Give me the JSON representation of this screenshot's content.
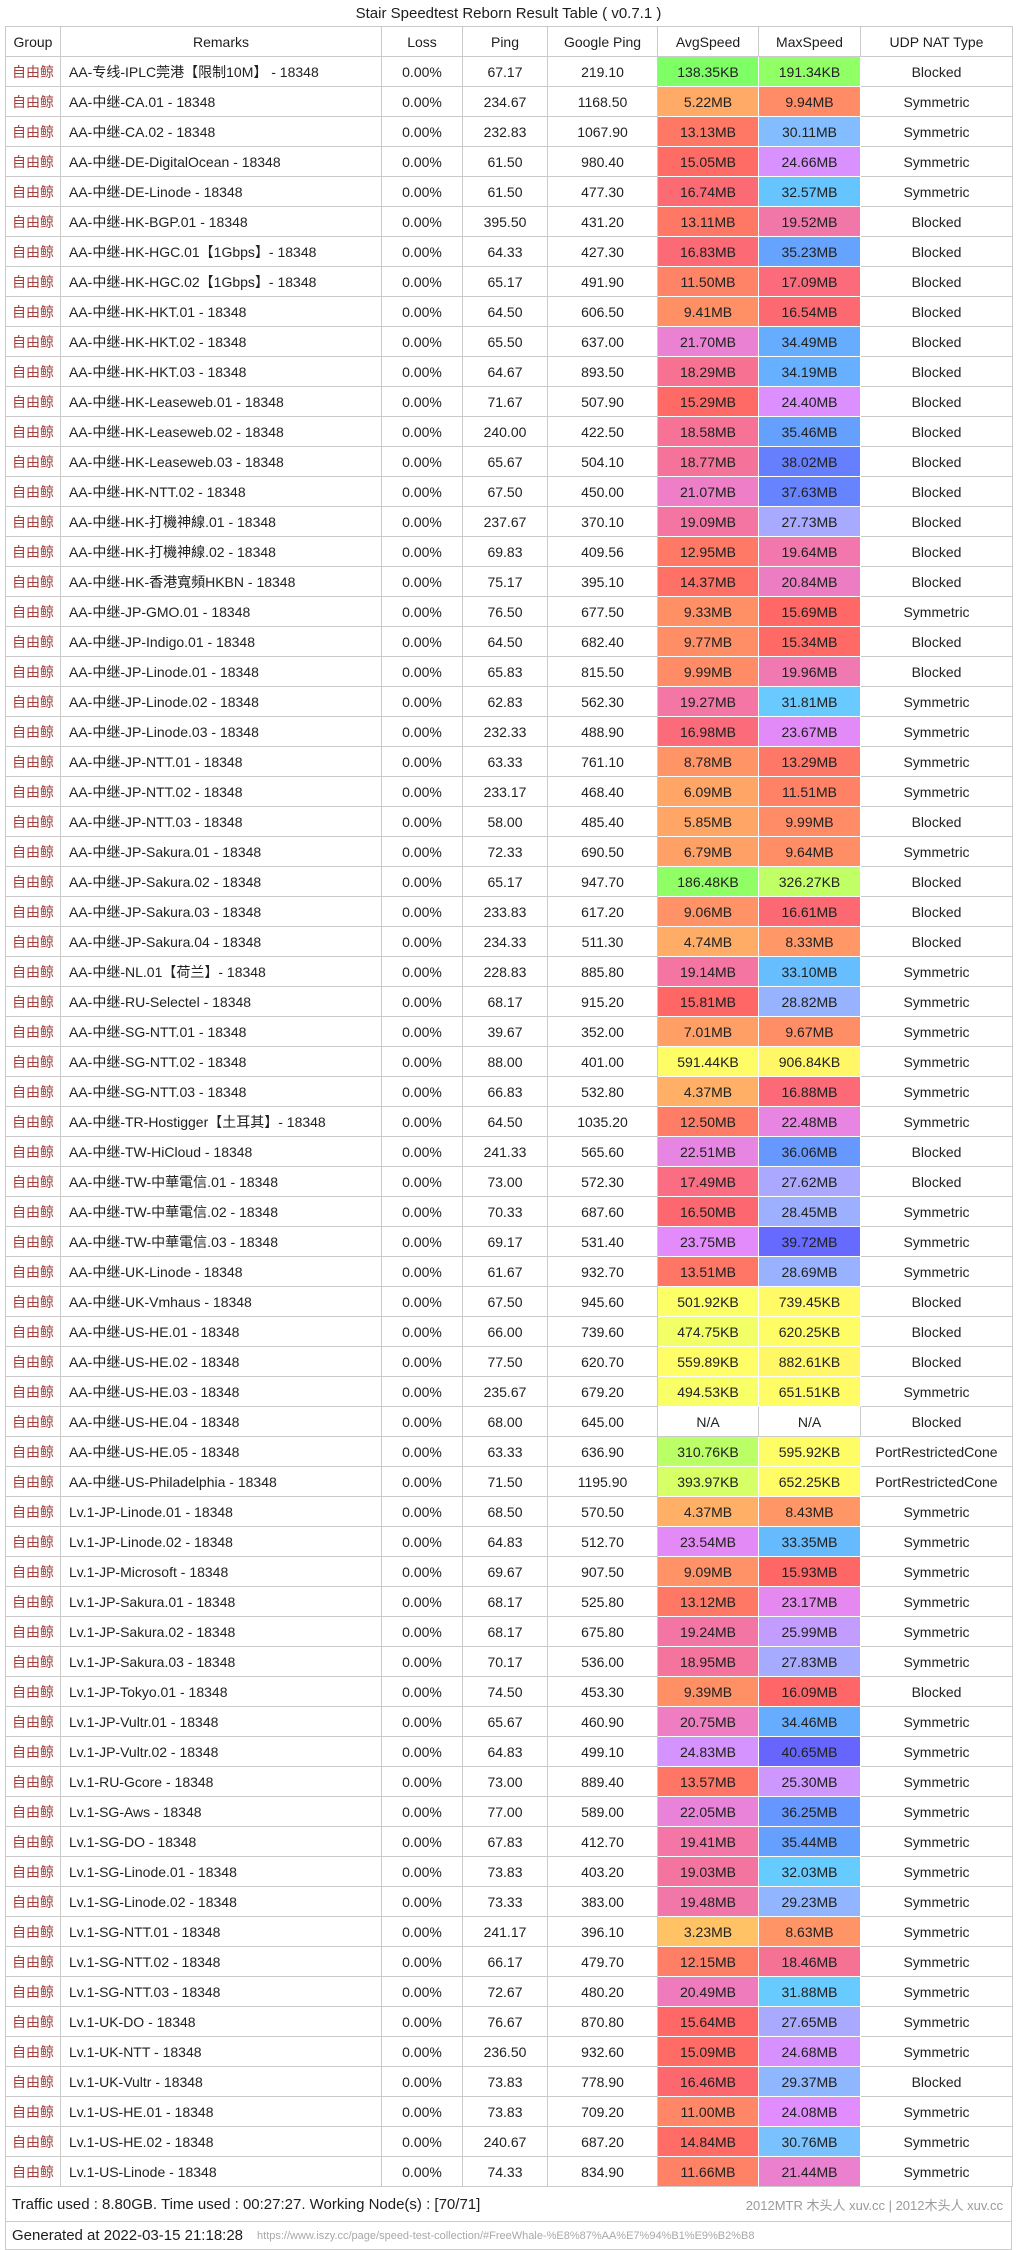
{
  "title": "Stair Speedtest Reborn Result Table ( v0.7.1 )",
  "columns": [
    "Group",
    "Remarks",
    "Loss",
    "Ping",
    "Google Ping",
    "AvgSpeed",
    "MaxSpeed",
    "UDP NAT Type"
  ],
  "group_text_color": "#A33E3B",
  "speed_color_scale": {
    "bounds_mb": [
      0,
      0.0625,
      0.5,
      4,
      16,
      24,
      32,
      40
    ],
    "colors": [
      "#FFFFFF",
      "#66FF66",
      "#FFFF66",
      "#FFB266",
      "#FF6666",
      "#E28CFF",
      "#66CCFF",
      "#6666FF"
    ]
  },
  "row_fields": [
    "group",
    "remarks",
    "loss",
    "ping",
    "google_ping",
    "avg_speed",
    "max_speed",
    "udp_nat_type"
  ],
  "rows": [
    [
      "自由鲸",
      "AA-专线-IPLC莞港【限制10M】 - 18348",
      "0.00%",
      "67.17",
      "219.10",
      "138.35KB",
      "191.34KB",
      "Blocked"
    ],
    [
      "自由鲸",
      "AA-中继-CA.01 - 18348",
      "0.00%",
      "234.67",
      "1168.50",
      "5.22MB",
      "9.94MB",
      "Symmetric"
    ],
    [
      "自由鲸",
      "AA-中继-CA.02 - 18348",
      "0.00%",
      "232.83",
      "1067.90",
      "13.13MB",
      "30.11MB",
      "Symmetric"
    ],
    [
      "自由鲸",
      "AA-中继-DE-DigitalOcean - 18348",
      "0.00%",
      "61.50",
      "980.40",
      "15.05MB",
      "24.66MB",
      "Symmetric"
    ],
    [
      "自由鲸",
      "AA-中继-DE-Linode - 18348",
      "0.00%",
      "61.50",
      "477.30",
      "16.74MB",
      "32.57MB",
      "Symmetric"
    ],
    [
      "自由鲸",
      "AA-中继-HK-BGP.01 - 18348",
      "0.00%",
      "395.50",
      "431.20",
      "13.11MB",
      "19.52MB",
      "Blocked"
    ],
    [
      "自由鲸",
      "AA-中继-HK-HGC.01【1Gbps】- 18348",
      "0.00%",
      "64.33",
      "427.30",
      "16.83MB",
      "35.23MB",
      "Blocked"
    ],
    [
      "自由鲸",
      "AA-中继-HK-HGC.02【1Gbps】- 18348",
      "0.00%",
      "65.17",
      "491.90",
      "11.50MB",
      "17.09MB",
      "Blocked"
    ],
    [
      "自由鲸",
      "AA-中继-HK-HKT.01 - 18348",
      "0.00%",
      "64.50",
      "606.50",
      "9.41MB",
      "16.54MB",
      "Blocked"
    ],
    [
      "自由鲸",
      "AA-中继-HK-HKT.02 - 18348",
      "0.00%",
      "65.50",
      "637.00",
      "21.70MB",
      "34.49MB",
      "Blocked"
    ],
    [
      "自由鲸",
      "AA-中继-HK-HKT.03 - 18348",
      "0.00%",
      "64.67",
      "893.50",
      "18.29MB",
      "34.19MB",
      "Blocked"
    ],
    [
      "自由鲸",
      "AA-中继-HK-Leaseweb.01 - 18348",
      "0.00%",
      "71.67",
      "507.90",
      "15.29MB",
      "24.40MB",
      "Blocked"
    ],
    [
      "自由鲸",
      "AA-中继-HK-Leaseweb.02 - 18348",
      "0.00%",
      "240.00",
      "422.50",
      "18.58MB",
      "35.46MB",
      "Blocked"
    ],
    [
      "自由鲸",
      "AA-中继-HK-Leaseweb.03 - 18348",
      "0.00%",
      "65.67",
      "504.10",
      "18.77MB",
      "38.02MB",
      "Blocked"
    ],
    [
      "自由鲸",
      "AA-中继-HK-NTT.02 - 18348",
      "0.00%",
      "67.50",
      "450.00",
      "21.07MB",
      "37.63MB",
      "Blocked"
    ],
    [
      "自由鲸",
      "AA-中继-HK-打機神線.01 - 18348",
      "0.00%",
      "237.67",
      "370.10",
      "19.09MB",
      "27.73MB",
      "Blocked"
    ],
    [
      "自由鲸",
      "AA-中继-HK-打機神線.02 - 18348",
      "0.00%",
      "69.83",
      "409.56",
      "12.95MB",
      "19.64MB",
      "Blocked"
    ],
    [
      "自由鲸",
      "AA-中继-HK-香港寬頻HKBN - 18348",
      "0.00%",
      "75.17",
      "395.10",
      "14.37MB",
      "20.84MB",
      "Blocked"
    ],
    [
      "自由鲸",
      "AA-中继-JP-GMO.01 - 18348",
      "0.00%",
      "76.50",
      "677.50",
      "9.33MB",
      "15.69MB",
      "Symmetric"
    ],
    [
      "自由鲸",
      "AA-中继-JP-Indigo.01 - 18348",
      "0.00%",
      "64.50",
      "682.40",
      "9.77MB",
      "15.34MB",
      "Blocked"
    ],
    [
      "自由鲸",
      "AA-中继-JP-Linode.01 - 18348",
      "0.00%",
      "65.83",
      "815.50",
      "9.99MB",
      "19.96MB",
      "Blocked"
    ],
    [
      "自由鲸",
      "AA-中继-JP-Linode.02 - 18348",
      "0.00%",
      "62.83",
      "562.30",
      "19.27MB",
      "31.81MB",
      "Symmetric"
    ],
    [
      "自由鲸",
      "AA-中继-JP-Linode.03 - 18348",
      "0.00%",
      "232.33",
      "488.90",
      "16.98MB",
      "23.67MB",
      "Symmetric"
    ],
    [
      "自由鲸",
      "AA-中继-JP-NTT.01 - 18348",
      "0.00%",
      "63.33",
      "761.10",
      "8.78MB",
      "13.29MB",
      "Symmetric"
    ],
    [
      "自由鲸",
      "AA-中继-JP-NTT.02 - 18348",
      "0.00%",
      "233.17",
      "468.40",
      "6.09MB",
      "11.51MB",
      "Symmetric"
    ],
    [
      "自由鲸",
      "AA-中继-JP-NTT.03 - 18348",
      "0.00%",
      "58.00",
      "485.40",
      "5.85MB",
      "9.99MB",
      "Blocked"
    ],
    [
      "自由鲸",
      "AA-中继-JP-Sakura.01 - 18348",
      "0.00%",
      "72.33",
      "690.50",
      "6.79MB",
      "9.64MB",
      "Symmetric"
    ],
    [
      "自由鲸",
      "AA-中继-JP-Sakura.02 - 18348",
      "0.00%",
      "65.17",
      "947.70",
      "186.48KB",
      "326.27KB",
      "Blocked"
    ],
    [
      "自由鲸",
      "AA-中继-JP-Sakura.03 - 18348",
      "0.00%",
      "233.83",
      "617.20",
      "9.06MB",
      "16.61MB",
      "Blocked"
    ],
    [
      "自由鲸",
      "AA-中继-JP-Sakura.04 - 18348",
      "0.00%",
      "234.33",
      "511.30",
      "4.74MB",
      "8.33MB",
      "Blocked"
    ],
    [
      "自由鲸",
      "AA-中继-NL.01【荷兰】- 18348",
      "0.00%",
      "228.83",
      "885.80",
      "19.14MB",
      "33.10MB",
      "Symmetric"
    ],
    [
      "自由鲸",
      "AA-中继-RU-Selectel - 18348",
      "0.00%",
      "68.17",
      "915.20",
      "15.81MB",
      "28.82MB",
      "Symmetric"
    ],
    [
      "自由鲸",
      "AA-中继-SG-NTT.01 - 18348",
      "0.00%",
      "39.67",
      "352.00",
      "7.01MB",
      "9.67MB",
      "Symmetric"
    ],
    [
      "自由鲸",
      "AA-中继-SG-NTT.02 - 18348",
      "0.00%",
      "88.00",
      "401.00",
      "591.44KB",
      "906.84KB",
      "Symmetric"
    ],
    [
      "自由鲸",
      "AA-中继-SG-NTT.03 - 18348",
      "0.00%",
      "66.83",
      "532.80",
      "4.37MB",
      "16.88MB",
      "Symmetric"
    ],
    [
      "自由鲸",
      "AA-中继-TR-Hostigger【土耳其】- 18348",
      "0.00%",
      "64.50",
      "1035.20",
      "12.50MB",
      "22.48MB",
      "Symmetric"
    ],
    [
      "自由鲸",
      "AA-中继-TW-HiCloud - 18348",
      "0.00%",
      "241.33",
      "565.60",
      "22.51MB",
      "36.06MB",
      "Blocked"
    ],
    [
      "自由鲸",
      "AA-中继-TW-中華電信.01 - 18348",
      "0.00%",
      "73.00",
      "572.30",
      "17.49MB",
      "27.62MB",
      "Blocked"
    ],
    [
      "自由鲸",
      "AA-中继-TW-中華電信.02 - 18348",
      "0.00%",
      "70.33",
      "687.60",
      "16.50MB",
      "28.45MB",
      "Symmetric"
    ],
    [
      "自由鲸",
      "AA-中继-TW-中華電信.03 - 18348",
      "0.00%",
      "69.17",
      "531.40",
      "23.75MB",
      "39.72MB",
      "Symmetric"
    ],
    [
      "自由鲸",
      "AA-中继-UK-Linode - 18348",
      "0.00%",
      "61.67",
      "932.70",
      "13.51MB",
      "28.69MB",
      "Symmetric"
    ],
    [
      "自由鲸",
      "AA-中继-UK-Vmhaus - 18348",
      "0.00%",
      "67.50",
      "945.60",
      "501.92KB",
      "739.45KB",
      "Blocked"
    ],
    [
      "自由鲸",
      "AA-中继-US-HE.01 - 18348",
      "0.00%",
      "66.00",
      "739.60",
      "474.75KB",
      "620.25KB",
      "Blocked"
    ],
    [
      "自由鲸",
      "AA-中继-US-HE.02 - 18348",
      "0.00%",
      "77.50",
      "620.70",
      "559.89KB",
      "882.61KB",
      "Blocked"
    ],
    [
      "自由鲸",
      "AA-中继-US-HE.03 - 18348",
      "0.00%",
      "235.67",
      "679.20",
      "494.53KB",
      "651.51KB",
      "Symmetric"
    ],
    [
      "自由鲸",
      "AA-中继-US-HE.04 - 18348",
      "0.00%",
      "68.00",
      "645.00",
      "N/A",
      "N/A",
      "Blocked"
    ],
    [
      "自由鲸",
      "AA-中继-US-HE.05 - 18348",
      "0.00%",
      "63.33",
      "636.90",
      "310.76KB",
      "595.92KB",
      "PortRestrictedCone"
    ],
    [
      "自由鲸",
      "AA-中继-US-Philadelphia - 18348",
      "0.00%",
      "71.50",
      "1195.90",
      "393.97KB",
      "652.25KB",
      "PortRestrictedCone"
    ],
    [
      "自由鲸",
      "Lv.1-JP-Linode.01 - 18348",
      "0.00%",
      "68.50",
      "570.50",
      "4.37MB",
      "8.43MB",
      "Symmetric"
    ],
    [
      "自由鲸",
      "Lv.1-JP-Linode.02 - 18348",
      "0.00%",
      "64.83",
      "512.70",
      "23.54MB",
      "33.35MB",
      "Symmetric"
    ],
    [
      "自由鲸",
      "Lv.1-JP-Microsoft - 18348",
      "0.00%",
      "69.67",
      "907.50",
      "9.09MB",
      "15.93MB",
      "Symmetric"
    ],
    [
      "自由鲸",
      "Lv.1-JP-Sakura.01 - 18348",
      "0.00%",
      "68.17",
      "525.80",
      "13.12MB",
      "23.17MB",
      "Symmetric"
    ],
    [
      "自由鲸",
      "Lv.1-JP-Sakura.02 - 18348",
      "0.00%",
      "68.17",
      "675.80",
      "19.24MB",
      "25.99MB",
      "Symmetric"
    ],
    [
      "自由鲸",
      "Lv.1-JP-Sakura.03 - 18348",
      "0.00%",
      "70.17",
      "536.00",
      "18.95MB",
      "27.83MB",
      "Symmetric"
    ],
    [
      "自由鲸",
      "Lv.1-JP-Tokyo.01 - 18348",
      "0.00%",
      "74.50",
      "453.30",
      "9.39MB",
      "16.09MB",
      "Blocked"
    ],
    [
      "自由鲸",
      "Lv.1-JP-Vultr.01 - 18348",
      "0.00%",
      "65.67",
      "460.90",
      "20.75MB",
      "34.46MB",
      "Symmetric"
    ],
    [
      "自由鲸",
      "Lv.1-JP-Vultr.02 - 18348",
      "0.00%",
      "64.83",
      "499.10",
      "24.83MB",
      "40.65MB",
      "Symmetric"
    ],
    [
      "自由鲸",
      "Lv.1-RU-Gcore - 18348",
      "0.00%",
      "73.00",
      "889.40",
      "13.57MB",
      "25.30MB",
      "Symmetric"
    ],
    [
      "自由鲸",
      "Lv.1-SG-Aws - 18348",
      "0.00%",
      "77.00",
      "589.00",
      "22.05MB",
      "36.25MB",
      "Symmetric"
    ],
    [
      "自由鲸",
      "Lv.1-SG-DO - 18348",
      "0.00%",
      "67.83",
      "412.70",
      "19.41MB",
      "35.44MB",
      "Symmetric"
    ],
    [
      "自由鲸",
      "Lv.1-SG-Linode.01 - 18348",
      "0.00%",
      "73.83",
      "403.20",
      "19.03MB",
      "32.03MB",
      "Symmetric"
    ],
    [
      "自由鲸",
      "Lv.1-SG-Linode.02 - 18348",
      "0.00%",
      "73.33",
      "383.00",
      "19.48MB",
      "29.23MB",
      "Symmetric"
    ],
    [
      "自由鲸",
      "Lv.1-SG-NTT.01 - 18348",
      "0.00%",
      "241.17",
      "396.10",
      "3.23MB",
      "8.63MB",
      "Symmetric"
    ],
    [
      "自由鲸",
      "Lv.1-SG-NTT.02 - 18348",
      "0.00%",
      "66.17",
      "479.70",
      "12.15MB",
      "18.46MB",
      "Symmetric"
    ],
    [
      "自由鲸",
      "Lv.1-SG-NTT.03 - 18348",
      "0.00%",
      "72.67",
      "480.20",
      "20.49MB",
      "31.88MB",
      "Symmetric"
    ],
    [
      "自由鲸",
      "Lv.1-UK-DO - 18348",
      "0.00%",
      "76.67",
      "870.80",
      "15.64MB",
      "27.65MB",
      "Symmetric"
    ],
    [
      "自由鲸",
      "Lv.1-UK-NTT - 18348",
      "0.00%",
      "236.50",
      "932.60",
      "15.09MB",
      "24.68MB",
      "Symmetric"
    ],
    [
      "自由鲸",
      "Lv.1-UK-Vultr - 18348",
      "0.00%",
      "73.83",
      "778.90",
      "16.46MB",
      "29.37MB",
      "Blocked"
    ],
    [
      "自由鲸",
      "Lv.1-US-HE.01 - 18348",
      "0.00%",
      "73.83",
      "709.20",
      "11.00MB",
      "24.08MB",
      "Symmetric"
    ],
    [
      "自由鲸",
      "Lv.1-US-HE.02 - 18348",
      "0.00%",
      "240.67",
      "687.20",
      "14.84MB",
      "30.76MB",
      "Symmetric"
    ],
    [
      "自由鲸",
      "Lv.1-US-Linode - 18348",
      "0.00%",
      "74.33",
      "834.90",
      "11.66MB",
      "21.44MB",
      "Symmetric"
    ]
  ],
  "footer": {
    "summary": "Traffic used : 8.80GB. Time used : 00:27:27. Working Node(s) : [70/71]",
    "watermark": "2012MTR 木头人 xuv.cc | 2012木头人 xuv.cc",
    "generated": "Generated at 2022-03-15 21:18:28",
    "url": "https://www.iszy.cc/page/speed-test-collection/#FreeWhale-%E8%87%AA%E7%94%B1%E9%B2%B8"
  }
}
